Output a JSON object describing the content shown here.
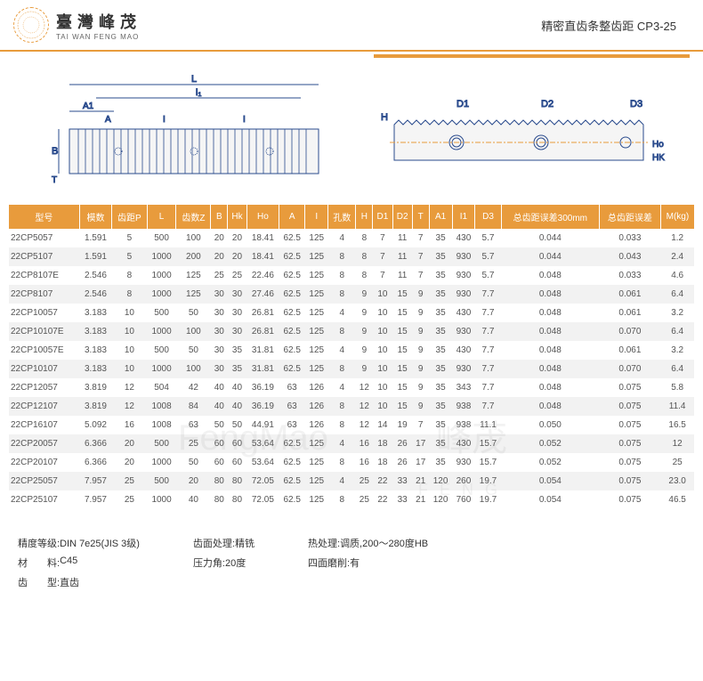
{
  "header": {
    "brand_cn": "臺灣峰茂",
    "brand_en": "TAI WAN FENG MAO",
    "logo_text": "FengMao",
    "title": "精密直齿条整齿距 CP3-25"
  },
  "diagrams": {
    "left": {
      "labels": [
        "L",
        "I₁",
        "A1",
        "A",
        "I",
        "I",
        "B",
        "T"
      ]
    },
    "right": {
      "labels": [
        "H",
        "D1",
        "D2",
        "D3",
        "Ho",
        "HK"
      ]
    }
  },
  "table": {
    "header_bg": "#e89b3c",
    "columns": [
      "型号",
      "模数",
      "齿距P",
      "L",
      "齿数Z",
      "B",
      "Hk",
      "Ho",
      "A",
      "I",
      "孔数",
      "H",
      "D1",
      "D2",
      "T",
      "A1",
      "I1",
      "D3",
      "总齿距误差300mm",
      "总齿距误差",
      "M(kg)"
    ],
    "rows": [
      [
        "22CP5057",
        "1.591",
        "5",
        "500",
        "100",
        "20",
        "20",
        "18.41",
        "62.5",
        "125",
        "4",
        "8",
        "7",
        "11",
        "7",
        "35",
        "430",
        "5.7",
        "0.044",
        "0.033",
        "1.2"
      ],
      [
        "22CP5107",
        "1.591",
        "5",
        "1000",
        "200",
        "20",
        "20",
        "18.41",
        "62.5",
        "125",
        "8",
        "8",
        "7",
        "11",
        "7",
        "35",
        "930",
        "5.7",
        "0.044",
        "0.043",
        "2.4"
      ],
      [
        "22CP8107E",
        "2.546",
        "8",
        "1000",
        "125",
        "25",
        "25",
        "22.46",
        "62.5",
        "125",
        "8",
        "8",
        "7",
        "11",
        "7",
        "35",
        "930",
        "5.7",
        "0.048",
        "0.033",
        "4.6"
      ],
      [
        "22CP8107",
        "2.546",
        "8",
        "1000",
        "125",
        "30",
        "30",
        "27.46",
        "62.5",
        "125",
        "8",
        "9",
        "10",
        "15",
        "9",
        "35",
        "930",
        "7.7",
        "0.048",
        "0.061",
        "6.4"
      ],
      [
        "22CP10057",
        "3.183",
        "10",
        "500",
        "50",
        "30",
        "30",
        "26.81",
        "62.5",
        "125",
        "4",
        "9",
        "10",
        "15",
        "9",
        "35",
        "430",
        "7.7",
        "0.048",
        "0.061",
        "3.2"
      ],
      [
        "22CP10107E",
        "3.183",
        "10",
        "1000",
        "100",
        "30",
        "30",
        "26.81",
        "62.5",
        "125",
        "8",
        "9",
        "10",
        "15",
        "9",
        "35",
        "930",
        "7.7",
        "0.048",
        "0.070",
        "6.4"
      ],
      [
        "22CP10057E",
        "3.183",
        "10",
        "500",
        "50",
        "30",
        "35",
        "31.81",
        "62.5",
        "125",
        "4",
        "9",
        "10",
        "15",
        "9",
        "35",
        "430",
        "7.7",
        "0.048",
        "0.061",
        "3.2"
      ],
      [
        "22CP10107",
        "3.183",
        "10",
        "1000",
        "100",
        "30",
        "35",
        "31.81",
        "62.5",
        "125",
        "8",
        "9",
        "10",
        "15",
        "9",
        "35",
        "930",
        "7.7",
        "0.048",
        "0.070",
        "6.4"
      ],
      [
        "22CP12057",
        "3.819",
        "12",
        "504",
        "42",
        "40",
        "40",
        "36.19",
        "63",
        "126",
        "4",
        "12",
        "10",
        "15",
        "9",
        "35",
        "343",
        "7.7",
        "0.048",
        "0.075",
        "5.8"
      ],
      [
        "22CP12107",
        "3.819",
        "12",
        "1008",
        "84",
        "40",
        "40",
        "36.19",
        "63",
        "126",
        "8",
        "12",
        "10",
        "15",
        "9",
        "35",
        "938",
        "7.7",
        "0.048",
        "0.075",
        "11.4"
      ],
      [
        "22CP16107",
        "5.092",
        "16",
        "1008",
        "63",
        "50",
        "50",
        "44.91",
        "63",
        "126",
        "8",
        "12",
        "14",
        "19",
        "7",
        "35",
        "938",
        "11.1",
        "0.050",
        "0.075",
        "16.5"
      ],
      [
        "22CP20057",
        "6.366",
        "20",
        "500",
        "25",
        "60",
        "60",
        "53.64",
        "62.5",
        "125",
        "4",
        "16",
        "18",
        "26",
        "17",
        "35",
        "430",
        "15.7",
        "0.052",
        "0.075",
        "12"
      ],
      [
        "22CP20107",
        "6.366",
        "20",
        "1000",
        "50",
        "60",
        "60",
        "53.64",
        "62.5",
        "125",
        "8",
        "16",
        "18",
        "26",
        "17",
        "35",
        "930",
        "15.7",
        "0.052",
        "0.075",
        "25"
      ],
      [
        "22CP25057",
        "7.957",
        "25",
        "500",
        "20",
        "80",
        "80",
        "72.05",
        "62.5",
        "125",
        "4",
        "25",
        "22",
        "33",
        "21",
        "120",
        "260",
        "19.7",
        "0.054",
        "0.075",
        "23.0"
      ],
      [
        "22CP25107",
        "7.957",
        "25",
        "1000",
        "40",
        "80",
        "80",
        "72.05",
        "62.5",
        "125",
        "8",
        "25",
        "22",
        "33",
        "21",
        "120",
        "760",
        "19.7",
        "0.054",
        "0.075",
        "46.5"
      ]
    ]
  },
  "footer": {
    "col1": [
      {
        "label": "精度等级:",
        "value": " DIN 7e25(JIS 3级)"
      },
      {
        "label": "材　　料:",
        "value": " C45"
      },
      {
        "label": "齿　　型:",
        "value": " 直齿"
      }
    ],
    "col2": [
      {
        "label": "齿面处理:",
        "value": " 精铣"
      },
      {
        "label": "压力角:",
        "value": " 20度"
      }
    ],
    "col3": [
      {
        "label": "热处理:",
        "value": " 调质,200～280度HB"
      },
      {
        "label": "四面磨削:",
        "value": " 有"
      }
    ]
  },
  "watermarks": {
    "wm1": "FengMao",
    "wm2": "峰茂",
    "wm3": "F E N G"
  }
}
